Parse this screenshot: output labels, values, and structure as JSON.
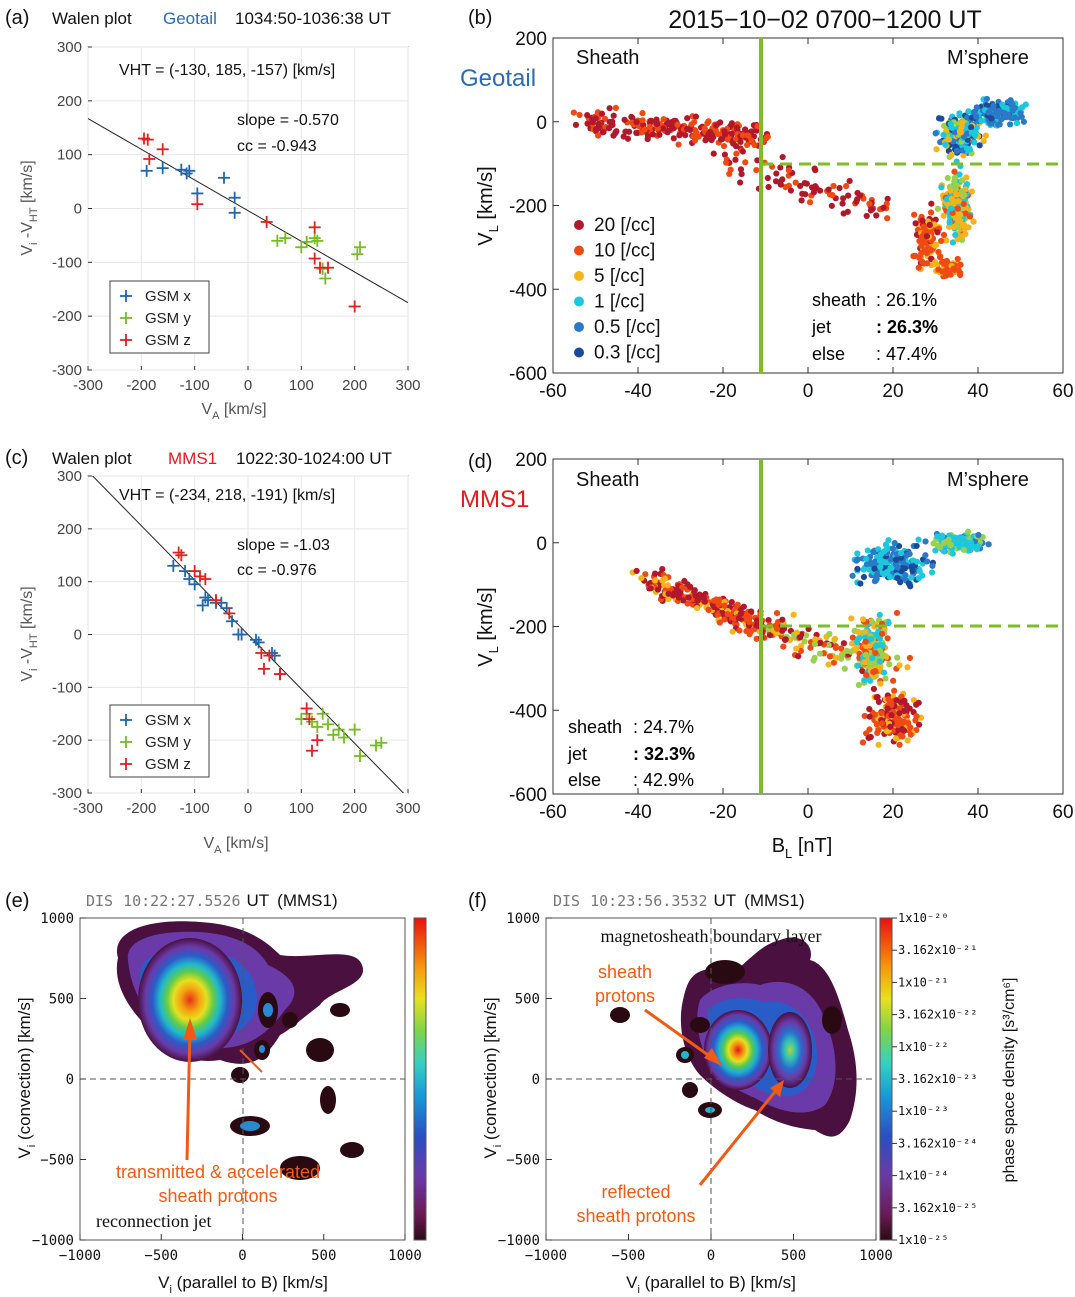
{
  "colors": {
    "geotail_blue": "#2a6bb5",
    "mms_red": "#e31a1c",
    "green_line": "#7ebc2a",
    "orange_annot": "#f05a14",
    "gsm_x": "#2266aa",
    "gsm_y": "#77bb22",
    "gsm_z": "#dd2222"
  },
  "figure_title": "2015−10−02  0700−1200 UT",
  "panel_a": {
    "letter": "(a)",
    "title_prefix": "Walen plot",
    "title_sat": "Geotail",
    "title_time": "1034:50-1036:38 UT",
    "vht": "VHT = (-130, 185, -157) [km/s]",
    "slope": "slope = -0.570",
    "cc": "cc = -0.943",
    "xlabel": "V",
    "xlabel_sub": "A",
    "xlabel_unit": " [km/s]",
    "ylabel": "V",
    "ylabel_sub1": "i",
    "ylabel_mid": " -V",
    "ylabel_sub2": "HT",
    "ylabel_unit": " [km/s]",
    "legend": [
      "GSM x",
      "GSM y",
      "GSM z"
    ]
  },
  "panel_b": {
    "letter": "(b)",
    "sat_label": "Geotail",
    "left_region": "Sheath",
    "right_region": "M’sphere",
    "density_legend": [
      "20 [/cc]",
      "10 [/cc]",
      "5 [/cc]",
      "1 [/cc]",
      "0.5 [/cc]",
      "0.3 [/cc]"
    ],
    "stats_labels": [
      "sheath",
      "jet",
      "else"
    ],
    "stats_values": [
      ": 26.1%",
      ": 26.3%",
      ": 47.4%"
    ]
  },
  "panel_c": {
    "letter": "(c)",
    "title_prefix": "Walen plot",
    "title_sat": "MMS1",
    "title_time": "1022:30-1024:00 UT",
    "vht": "VHT = (-234, 218, -191) [km/s]",
    "slope": "slope = -1.03",
    "cc": "cc = -0.976",
    "legend": [
      "GSM x",
      "GSM y",
      "GSM z"
    ]
  },
  "panel_d": {
    "letter": "(d)",
    "sat_label": "MMS1",
    "left_region": "Sheath",
    "right_region": "M’sphere",
    "stats_labels": [
      "sheath",
      "jet",
      "else"
    ],
    "stats_values": [
      ": 24.7%",
      ": 32.3%",
      ": 42.9%"
    ],
    "xlabel": "B",
    "xlabel_sub": "L",
    "xlabel_unit": " [nT]"
  },
  "panel_e": {
    "letter": "(e)",
    "title_inst": "DIS",
    "title_time": "10:22:27.5526",
    "title_ut": "UT",
    "title_sat": "(MMS1)",
    "annotation_1": "transmitted & accelerated",
    "annotation_2": "sheath protons",
    "annotation_3": "reconnection jet"
  },
  "panel_f": {
    "letter": "(f)",
    "title_inst": "DIS",
    "title_time": "10:23:56.3532",
    "title_ut": "UT",
    "title_sat": "(MMS1)",
    "region_label": "magnetosheath boundary layer",
    "annotation_1a": "sheath",
    "annotation_1b": "protons",
    "annotation_2a": "reflected",
    "annotation_2b": "sheath protons",
    "colorbar_title": "phase space density [s³/cm⁶]",
    "colorbar_ticks": [
      "1x10⁻²⁰",
      "3.162x10⁻²¹",
      "1x10⁻²¹",
      "3.162x10⁻²²",
      "1x10⁻²²",
      "3.162x10⁻²³",
      "1x10⁻²³",
      "3.162x10⁻²⁴",
      "1x10⁻²⁴",
      "3.162x10⁻²⁵",
      "1x10⁻²⁵"
    ]
  },
  "vdf_axes": {
    "xlabel": "V",
    "xlabel_sub": "i",
    "xlabel_rest": " (parallel to B)  [km/s]",
    "ylabel": "V",
    "ylabel_sub": "i",
    "ylabel_rest": " (convection)  [km/s]"
  },
  "chart_data": [
    {
      "id": "a",
      "type": "scatter",
      "title": "Walen plot Geotail 1034:50-1036:38 UT",
      "xlabel": "VA [km/s]",
      "ylabel": "Vi -VHT [km/s]",
      "xlim": [
        -300,
        300
      ],
      "ylim": [
        -300,
        300
      ],
      "xticks": [
        -300,
        -200,
        -100,
        0,
        100,
        200,
        300
      ],
      "yticks": [
        300,
        200,
        100,
        0,
        -100,
        -200,
        -300
      ],
      "grid": true,
      "legend_position": "bottom-left",
      "fit_slope": -0.57,
      "fit_intercept": -4,
      "series": [
        {
          "name": "GSM x",
          "x": [
            -190,
            -160,
            -125,
            -115,
            -110,
            -95,
            -45,
            -25,
            -25
          ],
          "y": [
            70,
            75,
            72,
            65,
            70,
            28,
            57,
            20,
            -8
          ]
        },
        {
          "name": "GSM y",
          "x": [
            55,
            70,
            100,
            110,
            125,
            130,
            140,
            145,
            205,
            210
          ],
          "y": [
            -60,
            -55,
            -72,
            -62,
            -55,
            -60,
            -112,
            -130,
            -85,
            -72
          ]
        },
        {
          "name": "GSM z",
          "x": [
            -195,
            -188,
            -185,
            -160,
            -95,
            35,
            125,
            125,
            135,
            150,
            200
          ],
          "y": [
            130,
            128,
            92,
            110,
            8,
            -25,
            -35,
            -93,
            -110,
            -110,
            -182
          ]
        }
      ]
    },
    {
      "id": "b",
      "type": "scatter",
      "xlabel": "",
      "ylabel": "VL [km/s]",
      "xlim": [
        -60,
        60
      ],
      "ylim": [
        -600,
        200
      ],
      "xticks": [
        -60,
        -40,
        -20,
        0,
        20,
        40,
        60
      ],
      "yticks": [
        200,
        0,
        -200,
        -400,
        -600
      ],
      "vertical_line_x": -10,
      "dashed_line_y": -100,
      "legend_position": "bottom-left",
      "color_by": "density [/cc]"
    },
    {
      "id": "c",
      "type": "scatter",
      "title": "Walen plot MMS1 1022:30-1024:00 UT",
      "xlabel": "VA [km/s]",
      "ylabel": "Vi -VHT [km/s]",
      "xlim": [
        -300,
        300
      ],
      "ylim": [
        -300,
        300
      ],
      "xticks": [
        -300,
        -200,
        -100,
        0,
        100,
        200,
        300
      ],
      "yticks": [
        300,
        200,
        100,
        0,
        -100,
        -200,
        -300
      ],
      "grid": true,
      "legend_position": "bottom-left",
      "fit_slope": -1.03,
      "fit_intercept": 0,
      "series": [
        {
          "name": "GSM x",
          "x": [
            -140,
            -118,
            -110,
            -100,
            -85,
            -80,
            -75,
            -60,
            -50,
            -40,
            -30,
            -18,
            -12,
            15,
            20,
            45,
            50,
            60
          ],
          "y": [
            130,
            120,
            105,
            95,
            55,
            70,
            65,
            60,
            60,
            50,
            25,
            0,
            0,
            -10,
            -15,
            -35,
            -40,
            -75
          ]
        },
        {
          "name": "GSM y",
          "x": [
            100,
            110,
            120,
            130,
            140,
            150,
            160,
            170,
            180,
            200,
            210,
            240,
            250
          ],
          "y": [
            -160,
            -150,
            -165,
            -175,
            -150,
            -170,
            -190,
            -180,
            -195,
            -180,
            -230,
            -210,
            -205
          ]
        },
        {
          "name": "GSM z",
          "x": [
            -130,
            -125,
            -100,
            -90,
            -80,
            -60,
            -35,
            25,
            30,
            40,
            60,
            110,
            115,
            120,
            130
          ],
          "y": [
            155,
            150,
            120,
            110,
            105,
            65,
            40,
            -35,
            -65,
            -40,
            -75,
            -140,
            -160,
            -220,
            -200
          ]
        }
      ]
    },
    {
      "id": "d",
      "type": "scatter",
      "xlabel": "BL [nT]",
      "ylabel": "VL [km/s]",
      "xlim": [
        -60,
        60
      ],
      "ylim": [
        -600,
        200
      ],
      "xticks": [
        -60,
        -40,
        -20,
        0,
        20,
        40,
        60
      ],
      "yticks": [
        200,
        0,
        -200,
        -400,
        -600
      ],
      "vertical_line_x": -10,
      "dashed_line_y": -200,
      "color_by": "density [/cc]"
    },
    {
      "id": "e",
      "type": "heatmap",
      "xlabel": "Vi (parallel to B)  [km/s]",
      "ylabel": "Vi (convection)  [km/s]",
      "xlim": [
        -1000,
        1000
      ],
      "ylim": [
        -1000,
        1000
      ],
      "xticks": [
        -1000,
        -500,
        0,
        500,
        1000
      ],
      "yticks": [
        1000,
        500,
        0,
        -500,
        -1000
      ]
    },
    {
      "id": "f",
      "type": "heatmap",
      "xlabel": "Vi (parallel to B)  [km/s]",
      "ylabel": "Vi (convection)  [km/s]",
      "xlim": [
        -1000,
        1000
      ],
      "ylim": [
        -1000,
        1000
      ],
      "xticks": [
        -1000,
        -500,
        0,
        500,
        1000
      ],
      "yticks": [
        1000,
        500,
        0,
        -500,
        -1000
      ],
      "colorbar_log_range": [
        -25,
        -20
      ]
    }
  ]
}
